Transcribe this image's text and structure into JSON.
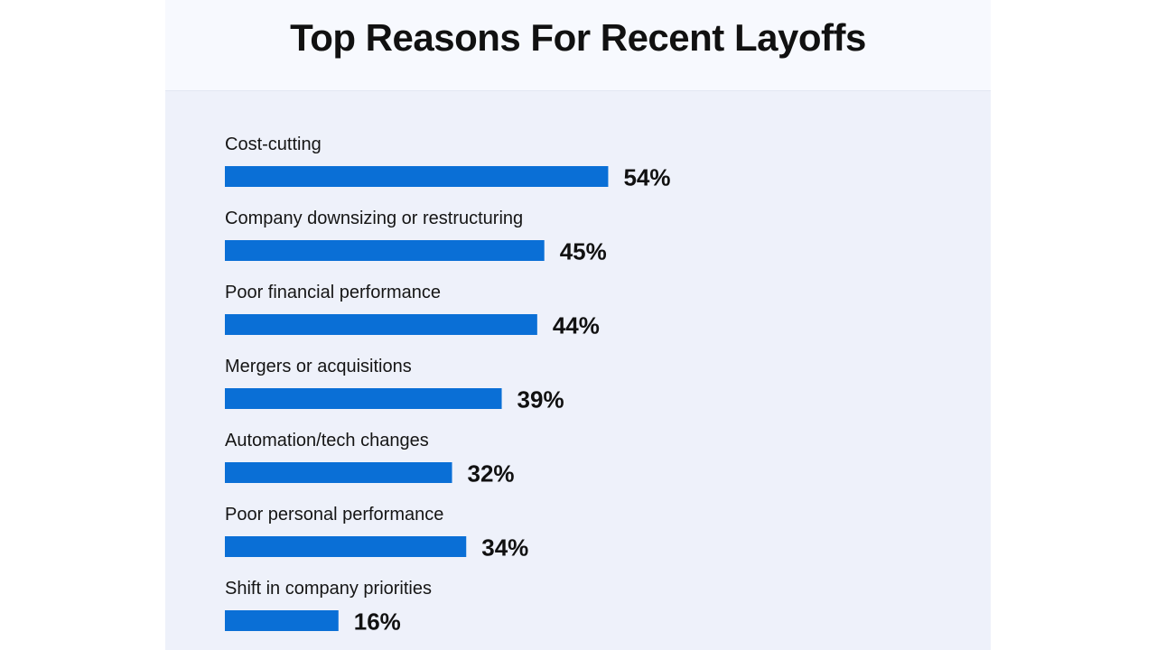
{
  "chart_data": {
    "type": "bar",
    "orientation": "horizontal",
    "title": "Top Reasons For Recent Layoffs",
    "categories": [
      "Cost-cutting",
      "Company downsizing or restructuring",
      "Poor financial performance",
      "Mergers or acquisitions",
      "Automation/tech changes",
      "Poor personal performance",
      "Shift in company priorities"
    ],
    "values": [
      54,
      45,
      44,
      39,
      32,
      34,
      16
    ],
    "value_labels": [
      "54%",
      "45%",
      "44%",
      "39%",
      "32%",
      "34%",
      "16%"
    ],
    "unit": "%",
    "bar_color": "#0a6fd6",
    "grid": false,
    "legend": false
  }
}
